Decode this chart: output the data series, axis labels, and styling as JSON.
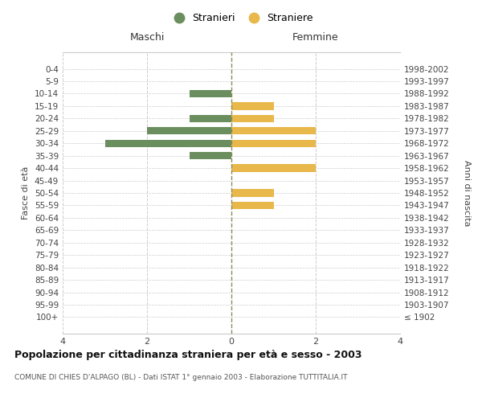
{
  "age_groups": [
    "100+",
    "95-99",
    "90-94",
    "85-89",
    "80-84",
    "75-79",
    "70-74",
    "65-69",
    "60-64",
    "55-59",
    "50-54",
    "45-49",
    "40-44",
    "35-39",
    "30-34",
    "25-29",
    "20-24",
    "15-19",
    "10-14",
    "5-9",
    "0-4"
  ],
  "birth_years": [
    "≤ 1902",
    "1903-1907",
    "1908-1912",
    "1913-1917",
    "1918-1922",
    "1923-1927",
    "1928-1932",
    "1933-1937",
    "1938-1942",
    "1943-1947",
    "1948-1952",
    "1953-1957",
    "1958-1962",
    "1963-1967",
    "1968-1972",
    "1973-1977",
    "1978-1982",
    "1983-1987",
    "1988-1992",
    "1993-1997",
    "1998-2002"
  ],
  "males": [
    0,
    0,
    0,
    0,
    0,
    0,
    0,
    0,
    0,
    0,
    0,
    0,
    0,
    1,
    3,
    2,
    1,
    0,
    1,
    0,
    0
  ],
  "females": [
    0,
    0,
    0,
    0,
    0,
    0,
    0,
    0,
    0,
    1,
    1,
    0,
    2,
    0,
    2,
    2,
    1,
    1,
    0,
    0,
    0
  ],
  "male_color": "#6b8e5e",
  "female_color": "#e8b84b",
  "title": "Popolazione per cittadinanza straniera per età e sesso - 2003",
  "subtitle": "COMUNE DI CHIES D'ALPAGO (BL) - Dati ISTAT 1° gennaio 2003 - Elaborazione TUTTITALIA.IT",
  "xlabel_left": "Maschi",
  "xlabel_right": "Femmine",
  "ylabel_left": "Fasce di età",
  "ylabel_right": "Anni di nascita",
  "legend_males": "Stranieri",
  "legend_females": "Straniere",
  "xlim": 4,
  "background_color": "#ffffff",
  "grid_color": "#cccccc",
  "dashed_line_color": "#8b8b5a"
}
